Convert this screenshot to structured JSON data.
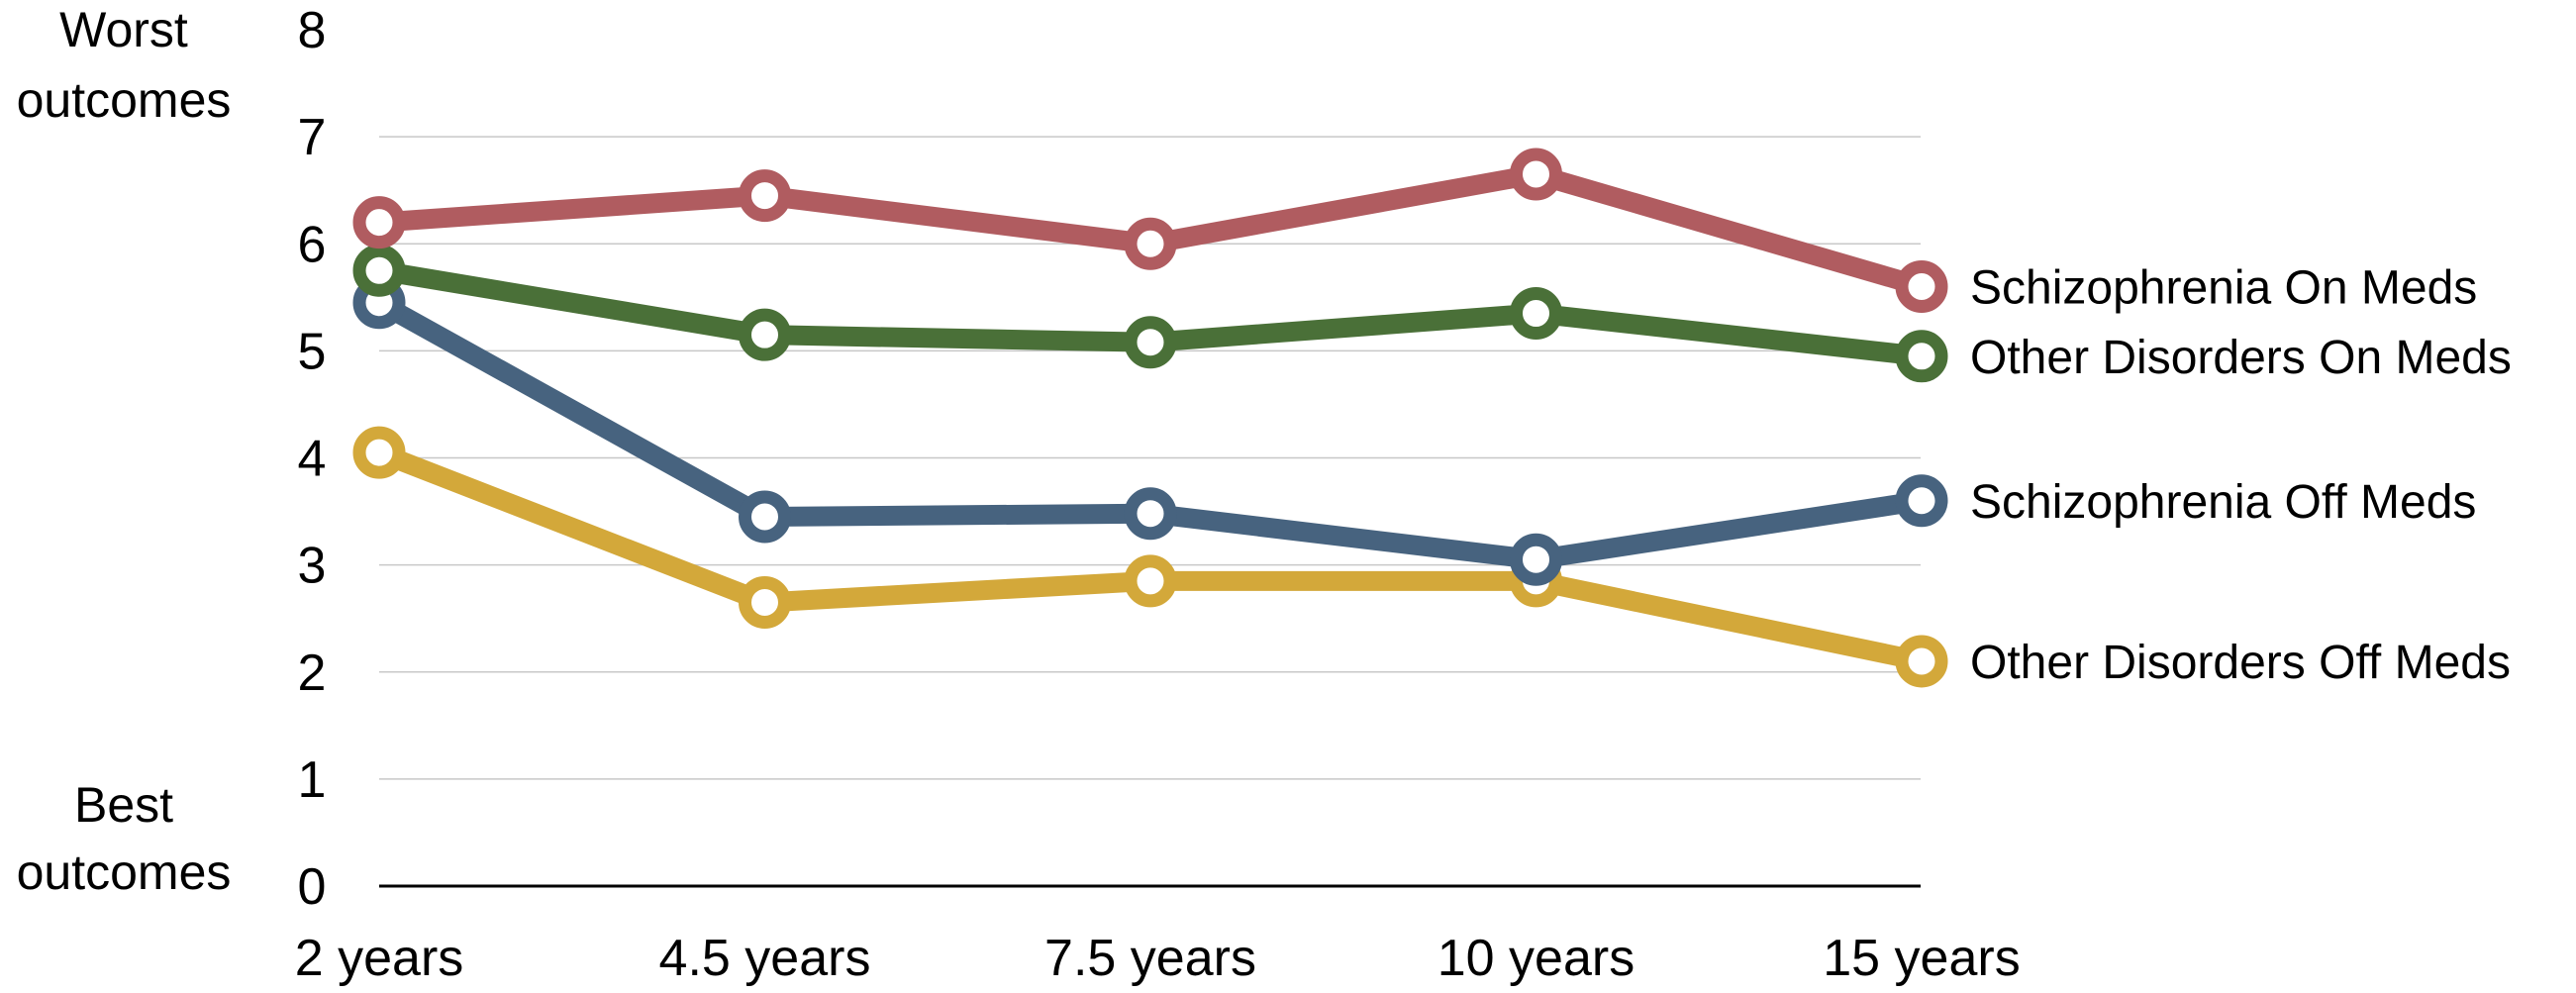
{
  "chart_data": {
    "type": "line",
    "title": "",
    "xlabel": "",
    "ylabel": "",
    "top_label": [
      "Worst",
      "outcomes"
    ],
    "bottom_label": [
      "Best",
      "outcomes"
    ],
    "categories": [
      "2 years",
      "4.5 years",
      "7.5 years",
      "10 years",
      "15 years"
    ],
    "yticks": [
      "0",
      "1",
      "2",
      "3",
      "4",
      "5",
      "6",
      "7",
      "8"
    ],
    "ylim": [
      0,
      8
    ],
    "grid": true,
    "legend": "right",
    "series": [
      {
        "name": "Schizophrenia On Meds",
        "color": "#b05c60",
        "values": [
          6.2,
          6.45,
          6.0,
          6.65,
          5.6
        ]
      },
      {
        "name": "Other Disorders On Meds",
        "color": "#4a7038",
        "values": [
          5.75,
          5.15,
          5.08,
          5.35,
          4.95
        ]
      },
      {
        "name": "Schizophrenia Off Meds",
        "color": "#47637f",
        "values": [
          5.45,
          3.45,
          3.48,
          3.05,
          3.6
        ]
      },
      {
        "name": "Other Disorders Off Meds",
        "color": "#d3a83a",
        "values": [
          4.05,
          2.65,
          2.85,
          2.85,
          2.1
        ]
      }
    ]
  }
}
